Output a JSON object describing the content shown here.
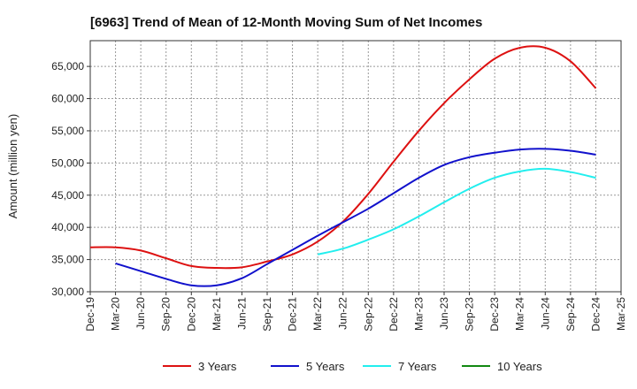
{
  "chart_data": {
    "type": "line",
    "title": "[6963]  Trend of Mean of 12-Month Moving Sum of Net Incomes",
    "ylabel": "Amount (million yen)",
    "xlabel": "",
    "ylim": [
      30000,
      69000
    ],
    "yticks": [
      30000,
      35000,
      40000,
      45000,
      50000,
      55000,
      60000,
      65000
    ],
    "ytick_labels": [
      "30,000",
      "35,000",
      "40,000",
      "45,000",
      "50,000",
      "55,000",
      "60,000",
      "65,000"
    ],
    "x_categories": [
      "Dec-19",
      "Mar-20",
      "Jun-20",
      "Sep-20",
      "Dec-20",
      "Mar-21",
      "Jun-21",
      "Sep-21",
      "Dec-21",
      "Mar-22",
      "Jun-22",
      "Sep-22",
      "Dec-22",
      "Mar-23",
      "Jun-23",
      "Sep-23",
      "Dec-23",
      "Mar-24",
      "Jun-24",
      "Sep-24",
      "Dec-24",
      "Mar-25"
    ],
    "grid": true,
    "legend_position": "bottom",
    "series": [
      {
        "name": "3 Years",
        "color": "#dd1111",
        "x": [
          "Dec-19",
          "Mar-20",
          "Jun-20",
          "Sep-20",
          "Dec-20",
          "Mar-21",
          "Jun-21",
          "Sep-21",
          "Dec-21",
          "Mar-22",
          "Jun-22",
          "Sep-22",
          "Dec-22",
          "Mar-23",
          "Jun-23",
          "Sep-23",
          "Dec-23",
          "Mar-24",
          "Jun-24",
          "Sep-24",
          "Dec-24"
        ],
        "values": [
          36900,
          36900,
          36400,
          35200,
          34000,
          33700,
          33800,
          34700,
          35800,
          37800,
          40900,
          45200,
          50200,
          55000,
          59300,
          63000,
          66200,
          67900,
          67900,
          65800,
          61600
        ]
      },
      {
        "name": "5 Years",
        "color": "#1111cc",
        "x": [
          "Mar-20",
          "Jun-20",
          "Sep-20",
          "Dec-20",
          "Mar-21",
          "Jun-21",
          "Sep-21",
          "Dec-21",
          "Mar-22",
          "Jun-22",
          "Sep-22",
          "Dec-22",
          "Mar-23",
          "Jun-23",
          "Sep-23",
          "Dec-23",
          "Mar-24",
          "Jun-24",
          "Sep-24",
          "Dec-24"
        ],
        "values": [
          34400,
          33200,
          32000,
          31000,
          31000,
          32100,
          34300,
          36500,
          38700,
          40800,
          42900,
          45300,
          47700,
          49700,
          50900,
          51600,
          52100,
          52200,
          51900,
          51300
        ]
      },
      {
        "name": "7 Years",
        "color": "#22eeee",
        "x": [
          "Mar-22",
          "Jun-22",
          "Sep-22",
          "Dec-22",
          "Mar-23",
          "Jun-23",
          "Sep-23",
          "Dec-23",
          "Mar-24",
          "Jun-24",
          "Sep-24",
          "Dec-24"
        ],
        "values": [
          35800,
          36700,
          38100,
          39700,
          41700,
          43900,
          46000,
          47700,
          48700,
          49100,
          48600,
          47700
        ]
      },
      {
        "name": "10 Years",
        "color": "#118811",
        "x": [],
        "values": []
      }
    ]
  }
}
